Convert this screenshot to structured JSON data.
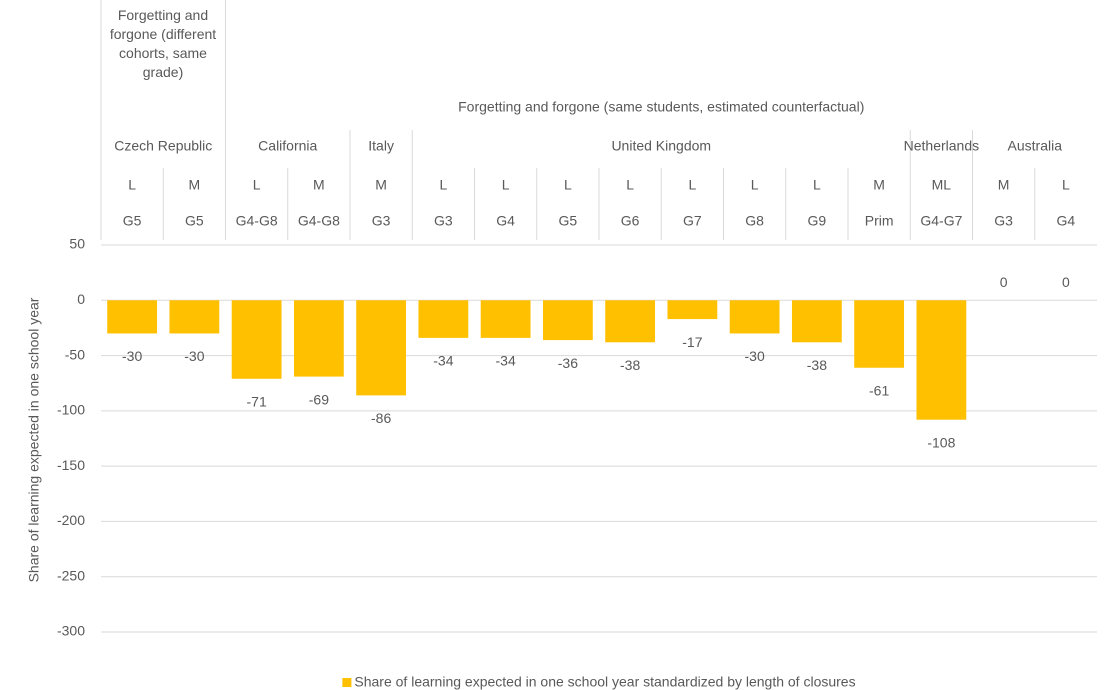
{
  "chart_data": {
    "type": "bar",
    "y_axis_label": "Share of learning expected in one school year",
    "categories": [
      "G5",
      "G5",
      "G4-G8",
      "G4-G8",
      "G3",
      "G3",
      "G4",
      "G5",
      "G6",
      "G7",
      "G8",
      "G9",
      "Prim",
      "G4-G7",
      "G3",
      "G4"
    ],
    "subjects": [
      "L",
      "M",
      "L",
      "M",
      "M",
      "L",
      "L",
      "L",
      "L",
      "L",
      "L",
      "L",
      "M",
      "ML",
      "M",
      "L"
    ],
    "country_groups": [
      {
        "label": "Czech Republic",
        "count": 2
      },
      {
        "label": "California",
        "count": 2
      },
      {
        "label": "Italy",
        "count": 1
      },
      {
        "label": "United Kingdom",
        "count": 8
      },
      {
        "label": "Netherlands",
        "count": 1
      },
      {
        "label": "Australia",
        "count": 2
      }
    ],
    "top_groups": [
      {
        "label": "Forgetting and forgone (different cohorts, same grade)",
        "count": 2
      },
      {
        "label": "Forgetting and forgone (same students, estimated counterfactual)",
        "count": 14
      }
    ],
    "series": [
      {
        "name": "Share of learning expected in one school year standardized by length of closures",
        "color": "#FFC000",
        "values": [
          -30,
          -30,
          -71,
          -69,
          -86,
          -34,
          -34,
          -36,
          -38,
          -17,
          -30,
          -38,
          -61,
          -108,
          0,
          0
        ]
      }
    ],
    "ylim": [
      -300,
      50
    ],
    "yticks": [
      50,
      0,
      -50,
      -100,
      -150,
      -200,
      -250,
      -300
    ],
    "grid": true,
    "legend": "bottom"
  }
}
